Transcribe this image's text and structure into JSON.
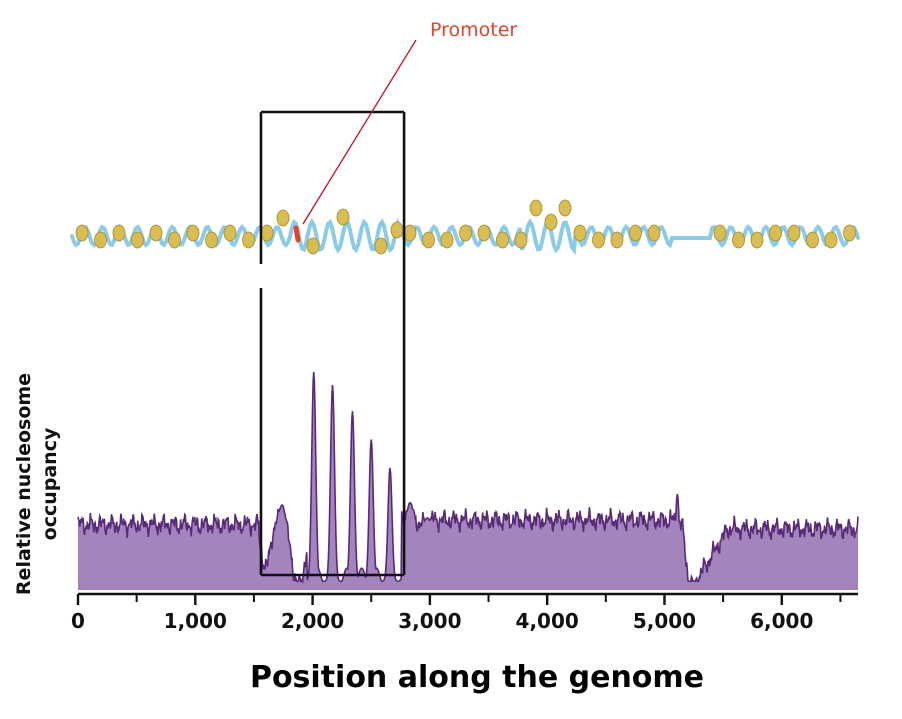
{
  "labels": {
    "promoter": "Promoter",
    "y_axis_line1": "Relative nucleosome",
    "y_axis_line2": "occupancy",
    "x_axis": "Position along the genome"
  },
  "colors": {
    "profile_fill": "#a384bd",
    "profile_line": "#5a2a7a",
    "dna_strand": "#8ccbe8",
    "nucleosome_fill": "#d8bd54",
    "nucleosome_stroke": "#a88a2a",
    "promoter": "#e0452c",
    "box": "#111111"
  },
  "chart_data": {
    "type": "area",
    "x_range": [
      0,
      6650
    ],
    "x_ticks": [
      0,
      1000,
      2000,
      3000,
      4000,
      5000,
      6000
    ],
    "x_tick_labels": [
      "0",
      "1,000",
      "2,000",
      "3,000",
      "4,000",
      "5,000",
      "6,000"
    ],
    "x_minor_ticks": [
      500,
      1500,
      2500,
      3500,
      4500,
      5500,
      6500
    ],
    "grid": false,
    "boxed_region": [
      1560,
      2780
    ],
    "promoter_position": 1850,
    "profile": {
      "baseline_level": 0.3,
      "high_peaks": [
        {
          "x": 2010,
          "y": 1.0
        },
        {
          "x": 2170,
          "y": 0.94
        },
        {
          "x": 2340,
          "y": 0.82
        },
        {
          "x": 2500,
          "y": 0.69
        },
        {
          "x": 2660,
          "y": 0.56
        }
      ],
      "shoulder_peaks": [
        {
          "x": 1740,
          "y": 0.39
        },
        {
          "x": 2830,
          "y": 0.4
        },
        {
          "x": 2980,
          "y": 0.33
        }
      ],
      "dips": [
        {
          "x": 1600,
          "y": 0.1
        },
        {
          "x": 1880,
          "y": 0.01
        },
        {
          "x": 5200,
          "y": 0.0
        }
      ],
      "notes_in_units": "relative occupancy, 0 = bottom of filled area, 1 = tallest peak"
    }
  }
}
